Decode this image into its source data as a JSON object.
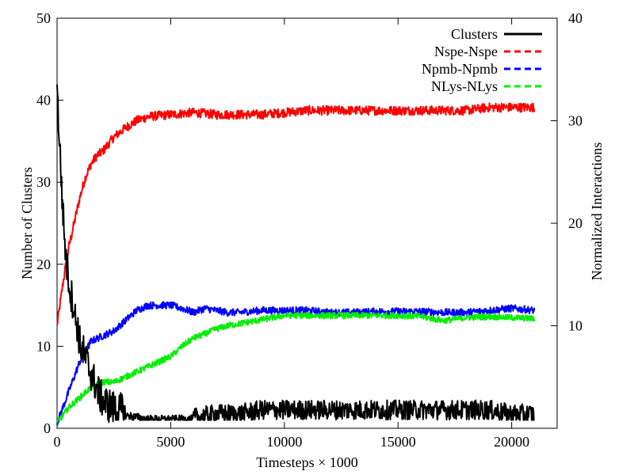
{
  "chart_data": {
    "type": "line",
    "xlabel": "Timesteps × 1000",
    "ylabel": "Number of Clusters",
    "y2label": "Normalized Interactions",
    "xlim": [
      0,
      22000
    ],
    "ylim": [
      0,
      50
    ],
    "y2lim": [
      0,
      40
    ],
    "x_ticks": [
      0,
      5000,
      10000,
      15000,
      20000
    ],
    "y_ticks": [
      0,
      10,
      20,
      30,
      40,
      50
    ],
    "y2_ticks": [
      10,
      20,
      30,
      40
    ],
    "grid": false,
    "legend_position": "top-right",
    "series": [
      {
        "name": "Clusters",
        "axis": "left",
        "color": "#000000",
        "style": "solid",
        "noise": 0.9,
        "x": [
          0,
          100,
          200,
          300,
          400,
          500,
          600,
          700,
          800,
          900,
          1000,
          1200,
          1400,
          1600,
          1800,
          2000,
          2200,
          2500,
          3000,
          4000,
          5000,
          6000,
          7000,
          8000,
          9000,
          10000,
          11000,
          12000,
          13000,
          14000,
          15000,
          16000,
          17000,
          18000,
          19000,
          20000,
          21000
        ],
        "y": [
          41,
          35,
          29,
          24,
          20,
          18,
          16,
          15,
          13,
          12,
          10,
          8.5,
          7,
          5.5,
          4,
          3,
          2.5,
          2,
          1.5,
          1,
          1,
          1,
          1.5,
          1.5,
          2,
          2,
          2,
          2,
          2,
          2,
          2,
          2,
          2,
          2,
          2,
          1.5,
          1.5
        ]
      },
      {
        "name": "Nspe-Nspe",
        "axis": "right",
        "color": "#ff0000",
        "style": "dashed",
        "noise": 0.45,
        "x": [
          0,
          250,
          500,
          750,
          1000,
          1250,
          1500,
          1750,
          2000,
          2500,
          3000,
          3500,
          4000,
          4500,
          5000,
          6000,
          7000,
          8000,
          9000,
          10000,
          11000,
          12000,
          13000,
          14000,
          15000,
          16000,
          17000,
          18000,
          19000,
          20000,
          21000
        ],
        "y": [
          10,
          14,
          17.5,
          20,
          22.5,
          24.5,
          25.8,
          26.6,
          27,
          28.4,
          29.3,
          30,
          30.4,
          30.5,
          30.6,
          30.8,
          30.6,
          30.6,
          30.6,
          30.8,
          31,
          31,
          31,
          31,
          31,
          31,
          31,
          31,
          31.3,
          31.3,
          31.3
        ]
      },
      {
        "name": "Npmb-Npmb",
        "axis": "right",
        "color": "#0000ff",
        "style": "dashed",
        "noise": 0.35,
        "x": [
          0,
          250,
          500,
          750,
          1000,
          1250,
          1500,
          2000,
          2500,
          3000,
          3500,
          4000,
          4500,
          5000,
          5500,
          6000,
          6500,
          7000,
          7500,
          8000,
          9000,
          10000,
          11000,
          12000,
          13000,
          14000,
          15000,
          16000,
          17000,
          18000,
          19000,
          20000,
          21000
        ],
        "y": [
          0.5,
          2,
          3.5,
          5,
          6.5,
          7.5,
          8.5,
          9,
          9.5,
          10.5,
          11.5,
          12,
          12,
          12,
          11.7,
          11.3,
          11.7,
          11.5,
          11.3,
          11.3,
          11.5,
          11.5,
          11.5,
          11.3,
          11.3,
          11.4,
          11.4,
          11.4,
          11.3,
          11.3,
          11.5,
          11.7,
          11.5
        ]
      },
      {
        "name": "NLys-NLys",
        "axis": "right",
        "color": "#00ee00",
        "style": "dashed",
        "noise": 0.3,
        "x": [
          0,
          500,
          1000,
          1500,
          2000,
          2500,
          3000,
          3500,
          4000,
          4500,
          5000,
          5500,
          6000,
          6500,
          7000,
          7500,
          8000,
          9000,
          10000,
          11000,
          12000,
          13000,
          14000,
          15000,
          16000,
          17000,
          18000,
          19000,
          20000,
          21000
        ],
        "y": [
          0.5,
          2,
          3,
          4,
          4.5,
          4.5,
          5,
          5.5,
          6,
          6.5,
          7,
          8,
          8.8,
          9.2,
          9.7,
          10,
          10.2,
          10.6,
          11,
          11,
          11,
          11,
          11,
          11,
          10.9,
          10.5,
          10.8,
          10.9,
          10.8,
          10.7
        ]
      }
    ]
  }
}
